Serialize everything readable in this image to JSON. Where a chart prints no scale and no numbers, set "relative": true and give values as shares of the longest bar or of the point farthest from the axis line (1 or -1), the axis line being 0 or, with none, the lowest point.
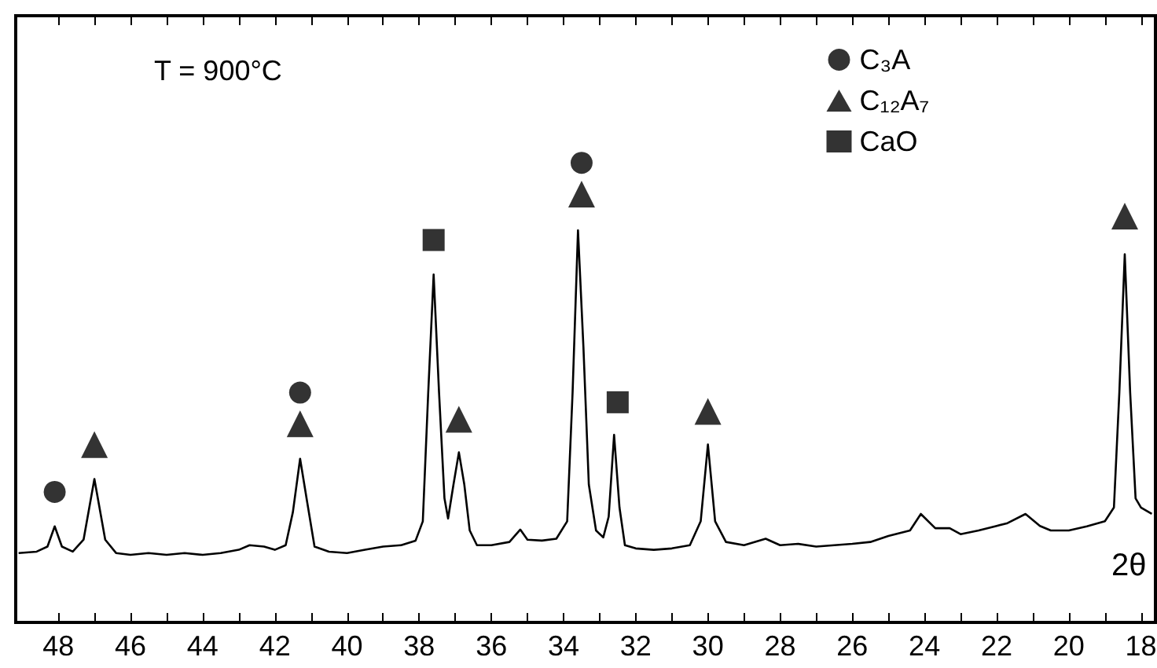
{
  "chart_data": {
    "type": "line",
    "relative": true,
    "xlabel": "2θ",
    "annotations": [
      "T = 900°C"
    ],
    "xlim": [
      49.18,
      17.6
    ],
    "xticks": [
      48,
      {
        "value": 47,
        "label": null
      },
      46,
      {
        "value": 45,
        "label": null
      },
      44,
      {
        "value": 43,
        "label": null
      },
      42,
      {
        "value": 41,
        "label": null
      },
      40,
      {
        "value": 39,
        "label": null
      },
      38,
      {
        "value": 37,
        "label": null
      },
      36,
      {
        "value": 35,
        "label": null
      },
      34,
      {
        "value": 33,
        "label": null
      },
      32,
      {
        "value": 31,
        "label": null
      },
      30,
      {
        "value": 29,
        "label": null
      },
      28,
      {
        "value": 27,
        "label": null
      },
      26,
      {
        "value": 25,
        "label": null
      },
      24,
      {
        "value": 23,
        "label": null
      },
      22,
      {
        "value": 21,
        "label": null
      },
      20,
      {
        "value": 19,
        "label": null
      },
      18
    ],
    "grid": false,
    "legend": "top right",
    "series": [
      {
        "color": "#000000",
        "marker": "none",
        "x": [
          49.1,
          48.6,
          48.3,
          48.1,
          47.9,
          47.6,
          47.3,
          47.0,
          46.7,
          46.4,
          46.0,
          45.5,
          45,
          44.5,
          44,
          43.5,
          43,
          42.7,
          42.3,
          42,
          41.7,
          41.5,
          41.3,
          41.1,
          40.9,
          40.5,
          40,
          39.5,
          39,
          38.5,
          38.1,
          37.9,
          37.75,
          37.6,
          37.45,
          37.3,
          37.2,
          37.05,
          36.9,
          36.75,
          36.6,
          36.4,
          36.0,
          35.5,
          35.2,
          35.0,
          34.6,
          34.2,
          33.9,
          33.75,
          33.6,
          33.45,
          33.3,
          33.1,
          32.9,
          32.75,
          32.6,
          32.45,
          32.3,
          32,
          31.5,
          31,
          30.5,
          30.2,
          30.0,
          29.8,
          29.5,
          29,
          28.4,
          28,
          27.5,
          27,
          26.5,
          26,
          25.5,
          25,
          24.4,
          24.1,
          23.7,
          23.3,
          23,
          22.5,
          22,
          21.7,
          21.2,
          20.8,
          20.5,
          20,
          19.5,
          19,
          18.75,
          18.6,
          18.45,
          18.3,
          18.15,
          18,
          17.7
        ],
        "values": [
          0.151,
          0.154,
          0.165,
          0.209,
          0.165,
          0.154,
          0.18,
          0.312,
          0.18,
          0.151,
          0.147,
          0.151,
          0.147,
          0.151,
          0.147,
          0.151,
          0.158,
          0.168,
          0.165,
          0.158,
          0.168,
          0.24,
          0.356,
          0.26,
          0.165,
          0.154,
          0.151,
          0.158,
          0.165,
          0.168,
          0.178,
          0.22,
          0.5,
          0.757,
          0.5,
          0.27,
          0.226,
          0.3,
          0.37,
          0.3,
          0.2,
          0.168,
          0.168,
          0.175,
          0.202,
          0.18,
          0.178,
          0.182,
          0.22,
          0.5,
          0.853,
          0.6,
          0.3,
          0.2,
          0.185,
          0.23,
          0.408,
          0.25,
          0.168,
          0.161,
          0.158,
          0.161,
          0.168,
          0.22,
          0.387,
          0.22,
          0.175,
          0.168,
          0.182,
          0.168,
          0.171,
          0.165,
          0.168,
          0.171,
          0.175,
          0.188,
          0.2,
          0.236,
          0.205,
          0.205,
          0.192,
          0.2,
          0.21,
          0.216,
          0.236,
          0.21,
          0.2,
          0.2,
          0.209,
          0.22,
          0.25,
          0.5,
          0.801,
          0.5,
          0.27,
          0.25,
          0.236
        ]
      },
      {
        "type": "scatter",
        "name": "C₃A",
        "color": "#000000",
        "marker": "circle",
        "x": [
          48.1,
          41.3,
          33.5
        ],
        "values": [
          0.284,
          0.5,
          1.0
        ]
      },
      {
        "type": "scatter",
        "name": "C₁₂A₇",
        "color": "#000000",
        "marker": "triangle",
        "x": [
          47.0,
          41.3,
          36.9,
          33.5,
          30.0,
          18.45
        ],
        "values": [
          0.387,
          0.432,
          0.442,
          0.932,
          0.459,
          0.884
        ]
      },
      {
        "type": "scatter",
        "name": "CaO",
        "color": "#000000",
        "marker": "square",
        "x": [
          37.6,
          32.5
        ],
        "values": [
          0.832,
          0.479
        ]
      }
    ]
  }
}
